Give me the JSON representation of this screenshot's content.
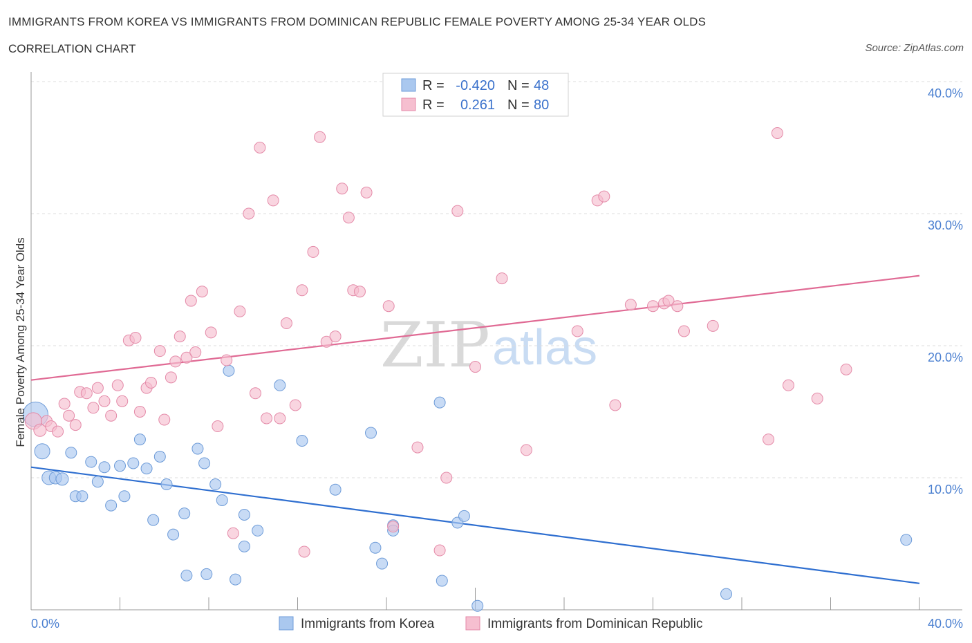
{
  "header": {
    "title": "IMMIGRANTS FROM KOREA VS IMMIGRANTS FROM DOMINICAN REPUBLIC FEMALE POVERTY AMONG 25-34 YEAR OLDS",
    "subtitle": "CORRELATION CHART",
    "source": "Source: ZipAtlas.com"
  },
  "watermark": {
    "zip": "ZIP",
    "atlas": "atlas"
  },
  "colors": {
    "blue_fill": "#aac8ef",
    "blue_stroke": "#6d9bd8",
    "blue_line": "#2f6fd0",
    "pink_fill": "#f6bfd0",
    "pink_stroke": "#e48aa8",
    "pink_line": "#e06a94",
    "grid": "#dddddd",
    "axis_text": "#4a7fd0"
  },
  "legend_top": {
    "rows": [
      {
        "r_label": "R =",
        "r_value": "-0.420",
        "n_label": "N =",
        "n_value": "48",
        "swatch": "blue"
      },
      {
        "r_label": "R =",
        "r_value": "0.261",
        "n_label": "N =",
        "n_value": "80",
        "swatch": "pink"
      }
    ]
  },
  "legend_bottom": {
    "items": [
      {
        "label": "Immigrants from Korea",
        "swatch": "blue"
      },
      {
        "label": "Immigrants from Dominican Republic",
        "swatch": "pink"
      }
    ]
  },
  "chart_data": {
    "type": "scatter",
    "title": "IMMIGRANTS FROM KOREA VS IMMIGRANTS FROM DOMINICAN REPUBLIC FEMALE POVERTY AMONG 25-34 YEAR OLDS",
    "xlabel": "",
    "ylabel": "Female Poverty Among 25-34 Year Olds",
    "xlim": [
      0,
      40
    ],
    "ylim": [
      0,
      40
    ],
    "x_tick_labels": [
      "0.0%",
      "40.0%"
    ],
    "y_tick_labels": [
      "10.0%",
      "20.0%",
      "30.0%",
      "40.0%"
    ],
    "y_ticks": [
      10,
      20,
      30,
      40
    ],
    "grid": true,
    "legend": "top-center and bottom",
    "series": [
      {
        "name": "Immigrants from Korea",
        "color": "#aac8ef",
        "trend": {
          "x": [
            0,
            40
          ],
          "y": [
            10.8,
            2.0
          ]
        },
        "points": [
          [
            0.2,
            14.8,
            18
          ],
          [
            0.5,
            12.0,
            11
          ],
          [
            0.8,
            10.0,
            10
          ],
          [
            1.1,
            10.0,
            9
          ],
          [
            1.4,
            9.9,
            9
          ],
          [
            1.8,
            11.9,
            8
          ],
          [
            2.0,
            8.6,
            8
          ],
          [
            2.3,
            8.6,
            8
          ],
          [
            2.7,
            11.2,
            8
          ],
          [
            3.0,
            9.7,
            8
          ],
          [
            3.3,
            10.8,
            8
          ],
          [
            3.6,
            7.9,
            8
          ],
          [
            4.0,
            10.9,
            8
          ],
          [
            4.2,
            8.6,
            8
          ],
          [
            4.6,
            11.1,
            8
          ],
          [
            4.9,
            12.9,
            8
          ],
          [
            5.2,
            10.7,
            8
          ],
          [
            5.5,
            6.8,
            8
          ],
          [
            5.8,
            11.6,
            8
          ],
          [
            6.1,
            9.5,
            8
          ],
          [
            6.4,
            5.7,
            8
          ],
          [
            6.9,
            7.3,
            8
          ],
          [
            7.0,
            2.6,
            8
          ],
          [
            7.5,
            12.2,
            8
          ],
          [
            7.8,
            11.1,
            8
          ],
          [
            7.9,
            2.7,
            8
          ],
          [
            8.3,
            9.5,
            8
          ],
          [
            8.6,
            8.3,
            8
          ],
          [
            8.9,
            18.1,
            8
          ],
          [
            9.2,
            2.3,
            8
          ],
          [
            9.6,
            7.2,
            8
          ],
          [
            9.6,
            4.8,
            8
          ],
          [
            10.2,
            6.0,
            8
          ],
          [
            11.2,
            17.0,
            8
          ],
          [
            12.2,
            12.8,
            8
          ],
          [
            13.7,
            9.1,
            8
          ],
          [
            15.3,
            13.4,
            8
          ],
          [
            15.5,
            4.7,
            8
          ],
          [
            15.8,
            3.5,
            8
          ],
          [
            16.3,
            6.4,
            8
          ],
          [
            16.3,
            6.0,
            8
          ],
          [
            18.4,
            15.7,
            8
          ],
          [
            18.5,
            2.2,
            8
          ],
          [
            19.2,
            6.6,
            8
          ],
          [
            19.5,
            7.1,
            8
          ],
          [
            20.1,
            0.3,
            8
          ],
          [
            31.3,
            1.2,
            8
          ],
          [
            39.4,
            5.3,
            8
          ]
        ]
      },
      {
        "name": "Immigrants from Dominican Republic",
        "color": "#f6bfd0",
        "trend": {
          "x": [
            0,
            40
          ],
          "y": [
            17.4,
            25.3
          ]
        },
        "points": [
          [
            0.1,
            14.3,
            12
          ],
          [
            0.4,
            13.6,
            9
          ],
          [
            0.7,
            14.3,
            8
          ],
          [
            0.9,
            13.9,
            8
          ],
          [
            1.2,
            13.5,
            8
          ],
          [
            1.5,
            15.6,
            8
          ],
          [
            1.7,
            14.7,
            8
          ],
          [
            2.0,
            14.0,
            8
          ],
          [
            2.2,
            16.5,
            8
          ],
          [
            2.5,
            16.4,
            8
          ],
          [
            2.8,
            15.3,
            8
          ],
          [
            3.0,
            16.8,
            8
          ],
          [
            3.3,
            15.8,
            8
          ],
          [
            3.6,
            14.7,
            8
          ],
          [
            3.9,
            17.0,
            8
          ],
          [
            4.1,
            15.8,
            8
          ],
          [
            4.4,
            20.4,
            8
          ],
          [
            4.7,
            20.6,
            8
          ],
          [
            4.9,
            15.0,
            8
          ],
          [
            5.2,
            16.8,
            8
          ],
          [
            5.4,
            17.2,
            8
          ],
          [
            5.8,
            19.6,
            8
          ],
          [
            6.0,
            14.4,
            8
          ],
          [
            6.3,
            17.6,
            8
          ],
          [
            6.5,
            18.8,
            8
          ],
          [
            6.7,
            20.7,
            8
          ],
          [
            7.0,
            19.1,
            8
          ],
          [
            7.2,
            23.4,
            8
          ],
          [
            7.4,
            19.5,
            8
          ],
          [
            7.7,
            24.1,
            8
          ],
          [
            8.1,
            21.0,
            8
          ],
          [
            8.4,
            13.9,
            8
          ],
          [
            8.8,
            18.9,
            8
          ],
          [
            9.1,
            5.8,
            8
          ],
          [
            9.4,
            22.6,
            8
          ],
          [
            9.8,
            30.0,
            8
          ],
          [
            10.1,
            16.4,
            8
          ],
          [
            10.3,
            35.0,
            8
          ],
          [
            10.6,
            14.5,
            8
          ],
          [
            10.9,
            31.0,
            8
          ],
          [
            11.2,
            14.5,
            8
          ],
          [
            11.5,
            21.7,
            8
          ],
          [
            11.9,
            15.5,
            8
          ],
          [
            12.3,
            4.4,
            8
          ],
          [
            12.7,
            27.1,
            8
          ],
          [
            12.2,
            24.2,
            8
          ],
          [
            13.0,
            35.8,
            8
          ],
          [
            13.3,
            20.3,
            8
          ],
          [
            13.7,
            20.7,
            8
          ],
          [
            14.0,
            31.9,
            8
          ],
          [
            14.3,
            29.7,
            8
          ],
          [
            14.5,
            24.2,
            8
          ],
          [
            14.8,
            24.1,
            8
          ],
          [
            15.1,
            31.6,
            8
          ],
          [
            16.1,
            23.0,
            8
          ],
          [
            16.3,
            6.3,
            8
          ],
          [
            17.4,
            12.3,
            8
          ],
          [
            18.4,
            4.5,
            8
          ],
          [
            18.7,
            10.0,
            8
          ],
          [
            19.2,
            30.2,
            8
          ],
          [
            20.0,
            18.4,
            8
          ],
          [
            21.2,
            25.1,
            8
          ],
          [
            21.5,
            38.6,
            8
          ],
          [
            22.3,
            12.1,
            8
          ],
          [
            24.6,
            21.1,
            8
          ],
          [
            25.5,
            31.0,
            8
          ],
          [
            25.8,
            31.3,
            8
          ],
          [
            26.3,
            15.5,
            8
          ],
          [
            27.0,
            23.1,
            8
          ],
          [
            28.0,
            23.0,
            8
          ],
          [
            28.5,
            23.2,
            8
          ],
          [
            28.7,
            23.4,
            8
          ],
          [
            29.1,
            23.0,
            8
          ],
          [
            29.4,
            21.1,
            8
          ],
          [
            30.7,
            21.5,
            8
          ],
          [
            33.2,
            12.9,
            8
          ],
          [
            33.6,
            36.1,
            8
          ],
          [
            34.1,
            17.0,
            8
          ],
          [
            35.4,
            16.0,
            8
          ],
          [
            36.7,
            18.2,
            8
          ]
        ]
      }
    ]
  }
}
